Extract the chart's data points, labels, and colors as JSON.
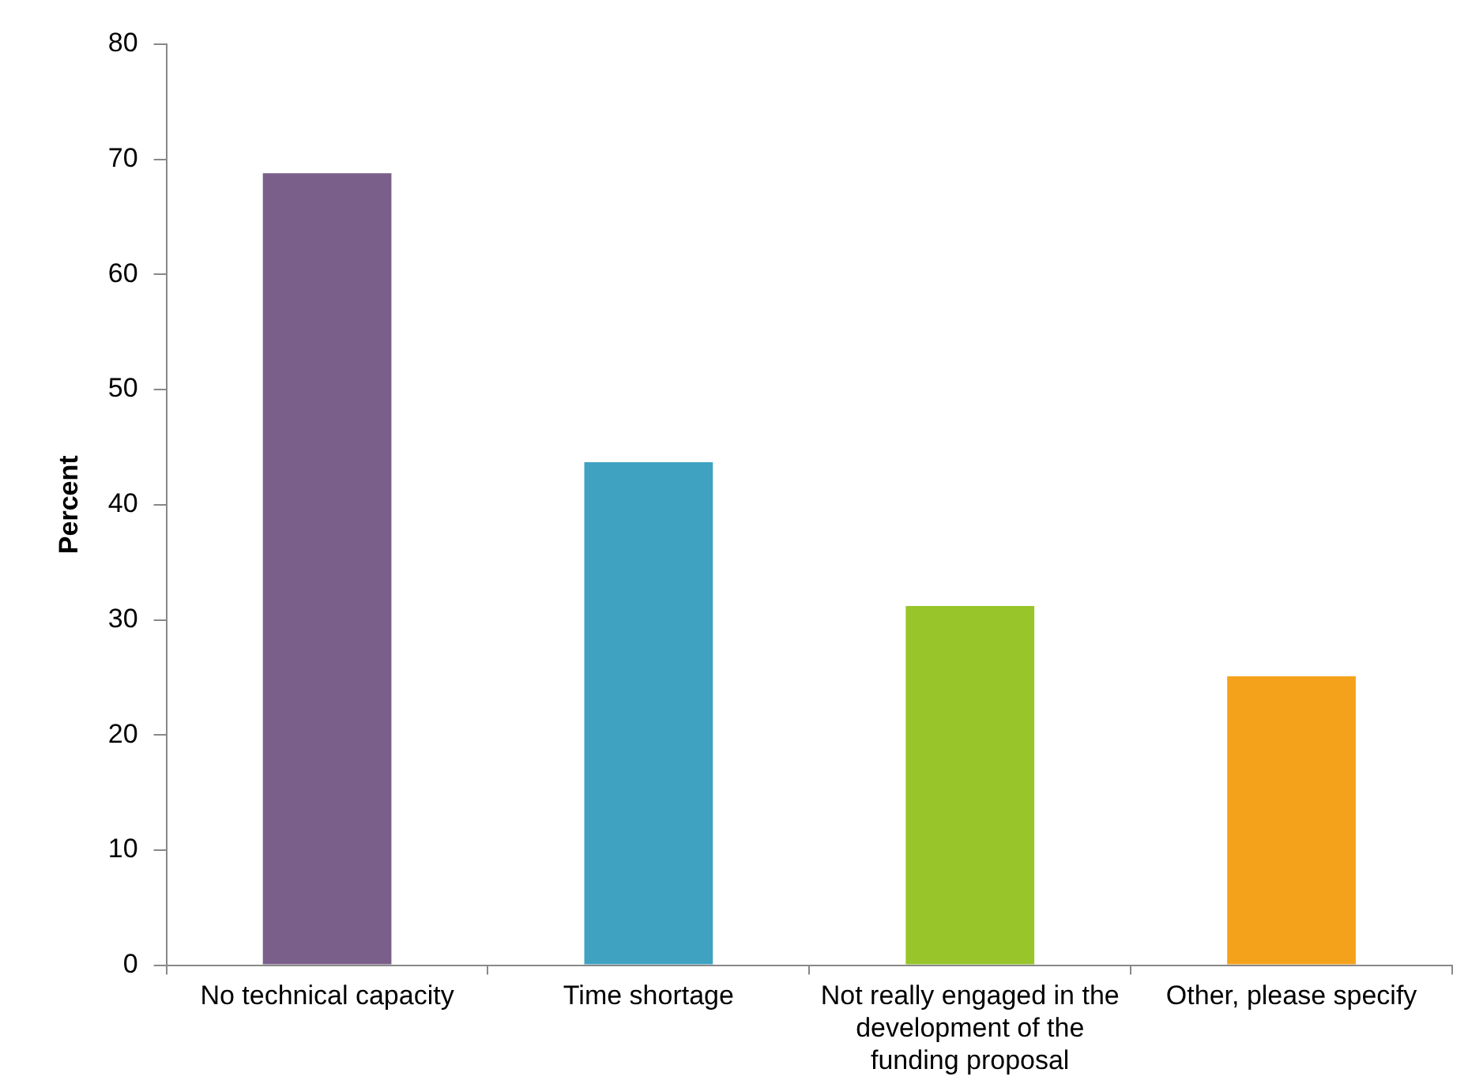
{
  "chart_data": {
    "type": "bar",
    "ylabel": "Percent",
    "categories": [
      "No technical capacity",
      "Time shortage",
      "Not really engaged in the development of the funding proposal",
      "Other, please specify"
    ],
    "values": [
      68.8,
      43.7,
      31.2,
      25.1
    ],
    "colors": [
      "#7b5f8b",
      "#3fa2c1",
      "#97c52a",
      "#f4a21c"
    ],
    "ylim": [
      0,
      80
    ],
    "yticks": [
      0,
      10,
      20,
      30,
      40,
      50,
      60,
      70,
      80
    ],
    "grid": false,
    "legend": false
  }
}
